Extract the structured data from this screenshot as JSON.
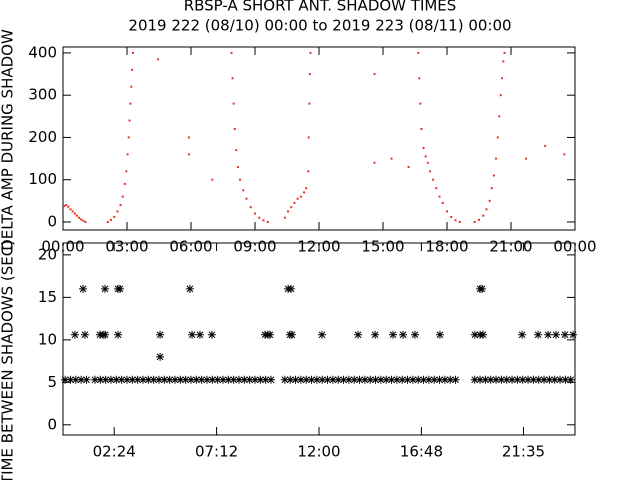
{
  "chart_data": [
    {
      "type": "scatter",
      "title": "RBSP-A SHORT ANT. SHADOW TIMES",
      "subtitle": "2019 222 (08/10) 00:00 to 2019 223 (08/11) 00:00",
      "y_label": "DELTA AMP DURING SHADOW",
      "color": "#e8321e",
      "x": [
        0.05,
        0.15,
        0.25,
        0.35,
        0.45,
        0.55,
        0.65,
        0.75,
        0.85,
        0.95,
        1.05,
        2.1,
        2.25,
        2.4,
        2.55,
        2.7,
        2.8,
        2.9,
        2.97,
        3.03,
        3.08,
        3.12,
        3.16,
        3.2,
        3.24,
        3.28,
        7.9,
        7.95,
        8.0,
        8.05,
        8.12,
        8.2,
        8.3,
        8.45,
        8.6,
        8.8,
        9.0,
        9.2,
        9.4,
        9.6,
        10.4,
        10.55,
        10.7,
        10.85,
        11.0,
        11.15,
        11.3,
        11.4,
        11.5,
        11.52,
        11.55,
        11.57,
        11.6,
        16.65,
        16.7,
        16.75,
        16.8,
        16.9,
        17.0,
        17.1,
        17.2,
        17.35,
        17.5,
        17.65,
        17.8,
        18.0,
        18.2,
        18.4,
        18.6,
        19.3,
        19.5,
        19.7,
        19.85,
        20.0,
        20.1,
        20.2,
        20.3,
        20.38,
        20.45,
        20.52,
        20.58,
        20.64,
        20.7,
        5.9,
        5.9,
        7.0,
        14.6,
        14.6,
        15.4,
        16.2,
        21.7,
        22.6,
        23.5,
        4.45
      ],
      "values": [
        38,
        40,
        36,
        30,
        25,
        20,
        15,
        10,
        6,
        3,
        0,
        0,
        5,
        12,
        25,
        40,
        60,
        90,
        120,
        160,
        200,
        240,
        280,
        320,
        360,
        400,
        400,
        340,
        280,
        220,
        170,
        130,
        100,
        75,
        55,
        35,
        20,
        10,
        4,
        0,
        10,
        25,
        35,
        45,
        55,
        60,
        70,
        80,
        120,
        200,
        280,
        350,
        400,
        400,
        340,
        280,
        220,
        175,
        155,
        140,
        120,
        100,
        80,
        60,
        45,
        25,
        12,
        4,
        0,
        0,
        5,
        15,
        30,
        50,
        80,
        110,
        150,
        200,
        250,
        300,
        340,
        380,
        400,
        200,
        160,
        100,
        350,
        140,
        150,
        130,
        150,
        180,
        160,
        385
      ],
      "xlim": [
        0,
        24
      ],
      "xticks": [
        {
          "value": 0,
          "label": "00:00"
        },
        {
          "value": 3,
          "label": "03:00"
        },
        {
          "value": 6,
          "label": "06:00"
        },
        {
          "value": 9,
          "label": "09:00"
        },
        {
          "value": 12,
          "label": "12:00"
        },
        {
          "value": 15,
          "label": "15:00"
        },
        {
          "value": 18,
          "label": "18:00"
        },
        {
          "value": 21,
          "label": "21:00"
        },
        {
          "value": 24,
          "label": "00:00"
        }
      ],
      "ylim": [
        -19,
        414
      ],
      "yticks": [
        0,
        100,
        200,
        300,
        400
      ]
    },
    {
      "type": "asterisk",
      "y_label": "TIME BETWEEN SHADOWS (SEC)",
      "color": "#000000",
      "series": [
        {
          "x": [
            0.1,
            0.35,
            0.6,
            0.85,
            1.1
          ],
          "values": [
            5.3,
            5.3,
            5.3,
            5.3,
            5.3
          ]
        },
        {
          "x": [
            1.5,
            1.75,
            2,
            2.25,
            2.5,
            2.75,
            3,
            3.25,
            3.5,
            3.75,
            4,
            4.25,
            4.5,
            4.75,
            5,
            5.25,
            5.5,
            5.75,
            6,
            6.25,
            6.5,
            6.75,
            7,
            7.25,
            7.5,
            7.75,
            8,
            8.25,
            8.5,
            8.75,
            9,
            9.25,
            9.5,
            9.75
          ],
          "values": [
            5.3,
            5.3,
            5.3,
            5.3,
            5.3,
            5.3,
            5.3,
            5.3,
            5.3,
            5.3,
            5.3,
            5.3,
            5.3,
            5.3,
            5.3,
            5.3,
            5.3,
            5.3,
            5.3,
            5.3,
            5.3,
            5.3,
            5.3,
            5.3,
            5.3,
            5.3,
            5.3,
            5.3,
            5.3,
            5.3,
            5.3,
            5.3,
            5.3,
            5.3
          ]
        },
        {
          "x": [
            10.4,
            10.65,
            10.9,
            11.15,
            11.4,
            11.65,
            11.9,
            12.15,
            12.4,
            12.65,
            12.9,
            13.15,
            13.4,
            13.65,
            13.9,
            14.15,
            14.4,
            14.65,
            14.9,
            15.15,
            15.4,
            15.65,
            15.9,
            16.15,
            16.4,
            16.65,
            16.9,
            17.15,
            17.4,
            17.65,
            17.9,
            18.15,
            18.4
          ],
          "values": [
            5.3,
            5.3,
            5.3,
            5.3,
            5.3,
            5.3,
            5.3,
            5.3,
            5.3,
            5.3,
            5.3,
            5.3,
            5.3,
            5.3,
            5.3,
            5.3,
            5.3,
            5.3,
            5.3,
            5.3,
            5.3,
            5.3,
            5.3,
            5.3,
            5.3,
            5.3,
            5.3,
            5.3,
            5.3,
            5.3,
            5.3,
            5.3,
            5.3
          ]
        },
        {
          "x": [
            19.3,
            19.55,
            19.8,
            20.05,
            20.3,
            20.55,
            20.8,
            21.05,
            21.3,
            21.55,
            21.8,
            22.05,
            22.3,
            22.55,
            22.8,
            23.05,
            23.3,
            23.55,
            23.8
          ],
          "values": [
            5.3,
            5.3,
            5.3,
            5.3,
            5.3,
            5.3,
            5.3,
            5.3,
            5.3,
            5.3,
            5.3,
            5.3,
            5.3,
            5.3,
            5.3,
            5.3,
            5.3,
            5.3,
            5.3
          ]
        },
        {
          "x": [
            0.56,
            1.03,
            1.73,
            1.88,
            1.97,
            2.58,
            4.55,
            6.05,
            6.42,
            6.98,
            9.47,
            9.61,
            9.7,
            10.64,
            10.73,
            12.14,
            13.83,
            14.63,
            15.47,
            15.94,
            16.5,
            17.67,
            19.31,
            19.55,
            19.69,
            21.52,
            22.27,
            22.74,
            23.11,
            23.53,
            23.91
          ],
          "values": [
            10.6,
            10.6,
            10.6,
            10.6,
            10.6,
            10.6,
            10.6,
            10.6,
            10.6,
            10.6,
            10.6,
            10.6,
            10.6,
            10.6,
            10.6,
            10.6,
            10.6,
            10.6,
            10.6,
            10.6,
            10.6,
            10.6,
            10.6,
            10.6,
            10.6,
            10.6,
            10.6,
            10.6,
            10.6,
            10.6,
            10.6
          ]
        },
        {
          "x": [
            0.94,
            1.97,
            2.58,
            2.67,
            5.95,
            10.55,
            10.69,
            19.55,
            19.64
          ],
          "values": [
            16,
            16,
            16,
            16,
            16,
            16,
            16,
            16,
            16
          ]
        },
        {
          "x": [
            4.55
          ],
          "values": [
            8
          ]
        }
      ],
      "xlim": [
        0,
        24
      ],
      "xticks": [
        {
          "value": 2.4,
          "label": "02:24"
        },
        {
          "value": 7.2,
          "label": "07:12"
        },
        {
          "value": 12,
          "label": "12:00"
        },
        {
          "value": 16.8,
          "label": "16:48"
        },
        {
          "value": 21.583,
          "label": "21:35"
        }
      ],
      "ylim": [
        -1.2,
        21.4
      ],
      "yticks": [
        0,
        5,
        10,
        15,
        20
      ]
    }
  ]
}
